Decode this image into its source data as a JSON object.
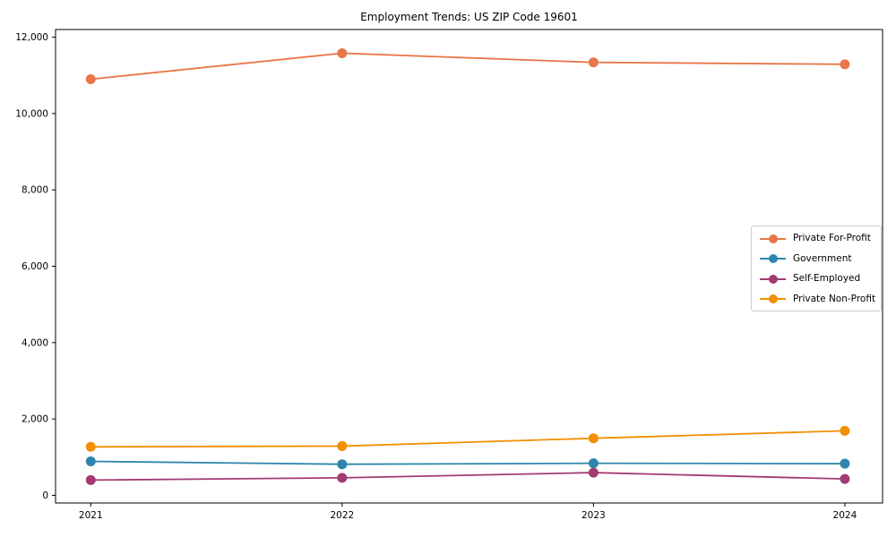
{
  "chart_data": {
    "type": "line",
    "title": "Employment Trends: US ZIP Code 19601",
    "x": [
      2021,
      2022,
      2023,
      2024
    ],
    "series": [
      {
        "name": "Private For-Profit",
        "color": "#E8764A",
        "values": [
          10900,
          11580,
          11340,
          11290
        ]
      },
      {
        "name": "Government",
        "color": "#2E86AB",
        "values": [
          890,
          815,
          840,
          830
        ]
      },
      {
        "name": "Self-Employed",
        "color": "#A23B72",
        "values": [
          400,
          460,
          595,
          430
        ]
      },
      {
        "name": "Private Non-Profit",
        "color": "#F18F01",
        "values": [
          1270,
          1290,
          1495,
          1690
        ]
      }
    ],
    "xlabel": "",
    "ylabel": "",
    "xticks": [
      "2021",
      "2022",
      "2023",
      "2024"
    ],
    "yticks": [
      0,
      2000,
      4000,
      6000,
      8000,
      10000,
      12000
    ],
    "ytick_format": "comma-thousands",
    "xlim": [
      2020.86,
      2024.15
    ],
    "ylim": [
      -200,
      12200
    ],
    "grid": false,
    "legend_position": "center right",
    "marker": "circle",
    "axis_color": "#000000"
  }
}
